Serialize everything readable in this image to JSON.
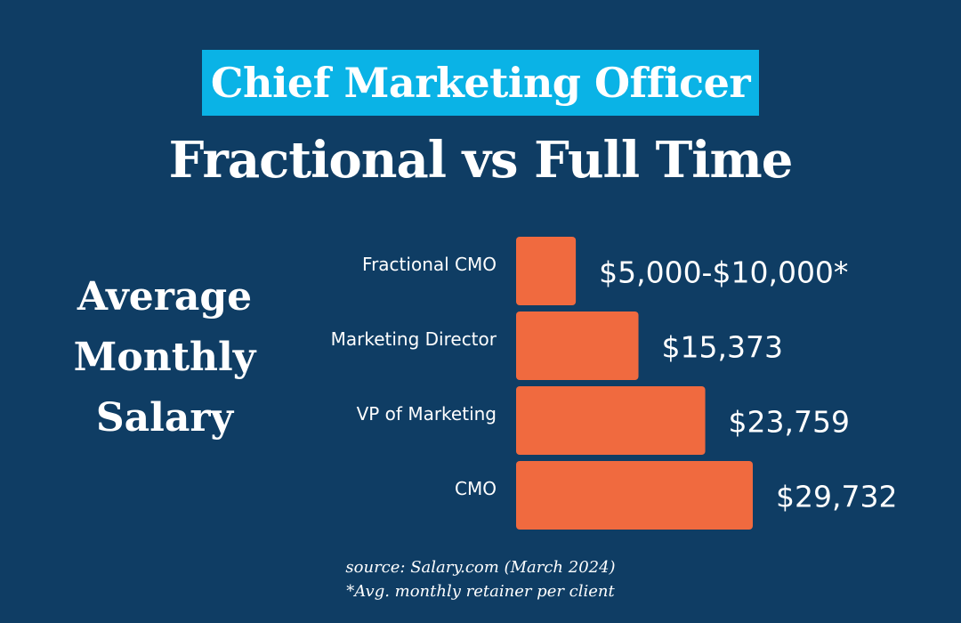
{
  "title": "Chief Marketing Officer",
  "subtitle": "Fractional vs Full Time",
  "side_label": [
    "Average",
    "Monthly",
    "Salary"
  ],
  "footer": {
    "source": "source: Salary.com (March 2024)",
    "note": "*Avg. monthly retainer per client"
  },
  "colors": {
    "background": "#0f3d64",
    "title_highlight": "#0ab3e6",
    "bar": "#f06a3f",
    "text": "#ffffff"
  },
  "chart_data": {
    "type": "bar",
    "orientation": "horizontal",
    "categories": [
      "Fractional CMO",
      "Marketing Director",
      "VP of Marketing",
      "CMO"
    ],
    "values": [
      7500,
      15373,
      23759,
      29732
    ],
    "value_labels": [
      "$5,000-$10,000*",
      "$15,373",
      "$23,759",
      "$29,732"
    ],
    "xlim": [
      0,
      29732
    ],
    "axes_visible": false,
    "grid": false
  }
}
